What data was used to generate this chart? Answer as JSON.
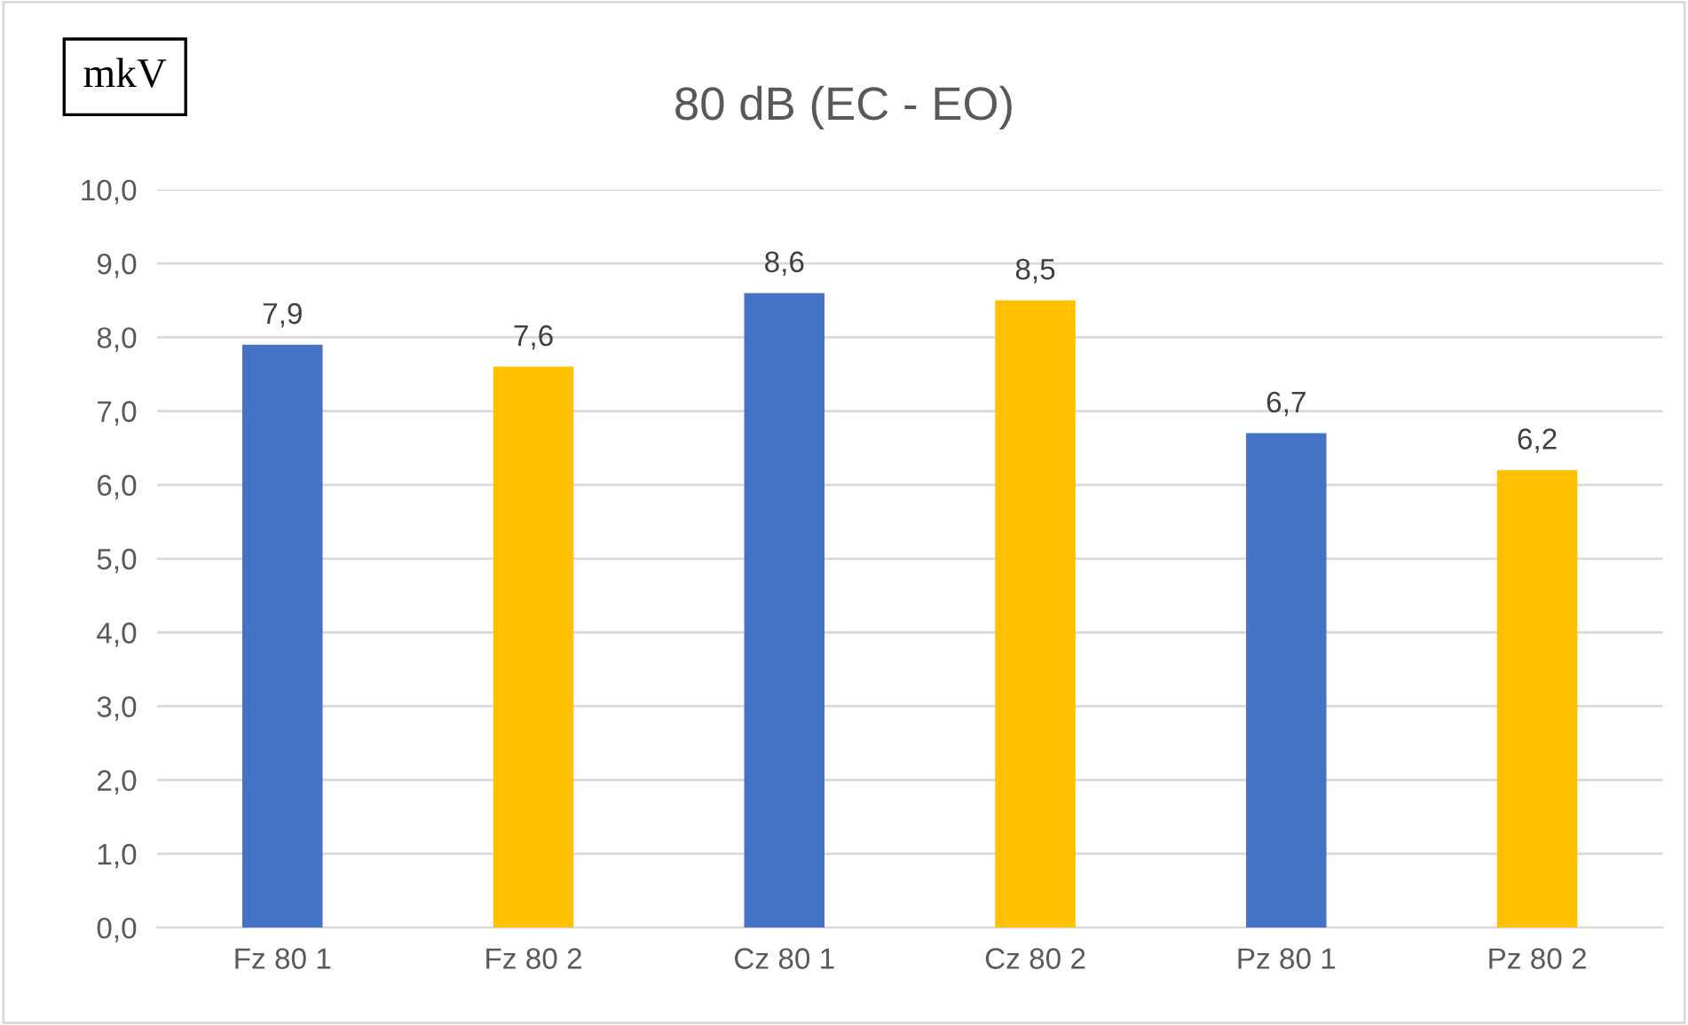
{
  "chart_data": {
    "type": "bar",
    "title": "80 dB (EC - EO)",
    "ylabel": "mkV",
    "categories": [
      "Fz 80 1",
      "Fz 80 2",
      "Cz 80 1",
      "Cz 80 2",
      "Pz 80 1",
      "Pz 80 2"
    ],
    "values": [
      7.9,
      7.6,
      8.6,
      8.5,
      6.7,
      6.2
    ],
    "colors": [
      "#4472c4",
      "#ffc000",
      "#4472c4",
      "#ffc000",
      "#4472c4",
      "#ffc000"
    ],
    "value_labels": [
      "7,9",
      "7,6",
      "8,6",
      "8,5",
      "6,7",
      "6,2"
    ],
    "ylim": [
      0,
      10
    ],
    "yticks": [
      {
        "value": 0,
        "label": "0,0"
      },
      {
        "value": 1,
        "label": "1,0"
      },
      {
        "value": 2,
        "label": "2,0"
      },
      {
        "value": 3,
        "label": "3,0"
      },
      {
        "value": 4,
        "label": "4,0"
      },
      {
        "value": 5,
        "label": "5,0"
      },
      {
        "value": 6,
        "label": "6,0"
      },
      {
        "value": 7,
        "label": "7,0"
      },
      {
        "value": 8,
        "label": "8,0"
      },
      {
        "value": 9,
        "label": "9,0"
      },
      {
        "value": 10,
        "label": "10,0"
      }
    ],
    "grid": "y",
    "legend": false
  }
}
